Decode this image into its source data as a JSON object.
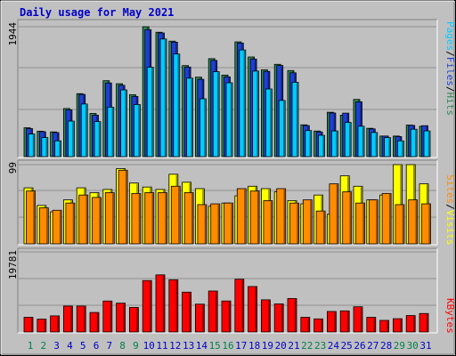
{
  "chart_data": {
    "type": "bar",
    "title": "Daily usage for May 2021",
    "categories": [
      "1",
      "2",
      "3",
      "4",
      "5",
      "6",
      "7",
      "8",
      "9",
      "10",
      "11",
      "12",
      "13",
      "14",
      "15",
      "16",
      "17",
      "18",
      "19",
      "20",
      "21",
      "22",
      "23",
      "24",
      "25",
      "26",
      "27",
      "28",
      "29",
      "30",
      "31"
    ],
    "weekend_days": [
      "1",
      "2",
      "8",
      "9",
      "15",
      "16",
      "22",
      "23",
      "29",
      "30"
    ],
    "panels": [
      {
        "id": "top",
        "ymax_label": "1944",
        "ylim": [
          0,
          1944
        ],
        "legend": [
          "Pages",
          "Files",
          "Hits"
        ],
        "series": [
          {
            "name": "Hits",
            "color": "#2e8b57",
            "values": [
              432,
              381,
              370,
              720,
              942,
              646,
              1136,
              1091,
              926,
              1944,
              1861,
              1728,
              1362,
              1189,
              1466,
              1220,
              1717,
              1491,
              1298,
              1381,
              1288,
              476,
              383,
              664,
              620,
              856,
              424,
              308,
              308,
              472,
              454
            ]
          },
          {
            "name": "Files",
            "color": "#1e3fd6",
            "values": [
              420,
              373,
              360,
              700,
              931,
              620,
              1102,
              1067,
              900,
              1900,
              1850,
              1713,
              1340,
              1157,
              1440,
              1193,
              1700,
              1460,
              1275,
              1363,
              1254,
              465,
              370,
              653,
              651,
              820,
              415,
              308,
              300,
              468,
              463
            ]
          },
          {
            "name": "Pages",
            "color": "#00ccff",
            "values": [
              338,
              286,
              236,
              532,
              787,
              525,
              740,
              998,
              780,
              1338,
              1760,
              1535,
              1174,
              865,
              1271,
              1105,
              1596,
              1280,
              1012,
              841,
              1113,
              390,
              319,
              384,
              512,
              455,
              361,
              284,
              236,
              410,
              385
            ]
          }
        ]
      },
      {
        "id": "middle",
        "ymax_label": "99",
        "ylim": [
          0,
          99
        ],
        "legend": [
          "Sites",
          "Visits"
        ],
        "series": [
          {
            "name": "Visits",
            "color": "#ffff00",
            "values": [
              70,
              48,
              40,
              55,
              70,
              64,
              68,
              94,
              76,
              71,
              68,
              87,
              77,
              69,
              47,
              51,
              60,
              72,
              69,
              65,
              54,
              50,
              61,
              37,
              85,
              72,
              55,
              61,
              99,
              99,
              75
            ]
          },
          {
            "name": "Sites",
            "color": "#ff8c00",
            "values": [
              66,
              45,
              42,
              51,
              61,
              58,
              64,
              92,
              63,
              64,
              64,
              72,
              64,
              49,
              50,
              51,
              69,
              66,
              54,
              69,
              51,
              55,
              41,
              75,
              65,
              51,
              55,
              63,
              49,
              55,
              50
            ]
          }
        ]
      },
      {
        "id": "bottom",
        "ymax_label": "19781",
        "ylim": [
          0,
          19781
        ],
        "legend": [
          "KBytes"
        ],
        "series": [
          {
            "name": "KBytes",
            "color": "#ff0000",
            "values": [
              3624,
              3170,
              3975,
              6395,
              6395,
              4816,
              7643,
              7120,
              6057,
              12700,
              14100,
              12900,
              9833,
              6870,
              10110,
              7650,
              13020,
              11220,
              7940,
              6940,
              8260,
              3620,
              3230,
              5060,
              5210,
              6220,
              3620,
              2860,
              3280,
              4060,
              4560
            ]
          }
        ]
      }
    ]
  }
}
